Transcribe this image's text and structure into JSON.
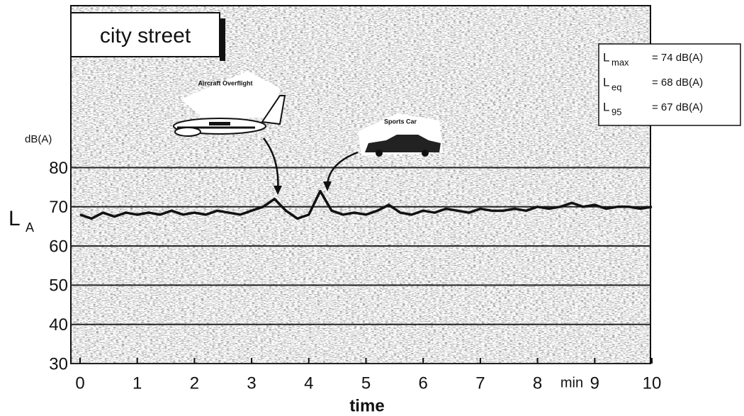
{
  "chart_data": {
    "type": "line",
    "title": "city street",
    "x": [
      0,
      0.2,
      0.4,
      0.6,
      0.8,
      1.0,
      1.2,
      1.4,
      1.6,
      1.8,
      2.0,
      2.2,
      2.4,
      2.6,
      2.8,
      3.0,
      3.2,
      3.4,
      3.6,
      3.8,
      4.0,
      4.2,
      4.4,
      4.6,
      4.8,
      5.0,
      5.2,
      5.4,
      5.6,
      5.8,
      6.0,
      6.2,
      6.4,
      6.6,
      6.8,
      7.0,
      7.2,
      7.4,
      7.6,
      7.8,
      8.0,
      8.2,
      8.4,
      8.6,
      8.8,
      9.0,
      9.2,
      9.4,
      9.6,
      9.8,
      10.0
    ],
    "values": [
      68,
      67,
      68.5,
      67.5,
      68.5,
      68,
      68.5,
      68,
      69,
      68,
      68.5,
      68,
      69,
      68.5,
      68,
      69,
      70,
      72,
      69,
      67,
      68,
      74,
      69,
      68,
      68.5,
      68,
      69,
      70.5,
      68.5,
      68,
      69,
      68.5,
      69.5,
      69,
      68.5,
      69.5,
      69,
      69,
      69.5,
      69,
      70,
      69.5,
      70,
      71,
      70,
      70.5,
      69.5,
      70,
      70,
      69.5,
      70
    ],
    "color": "#111111",
    "xlim": [
      0,
      10
    ],
    "xticks": [
      0,
      1,
      2,
      3,
      4,
      5,
      6,
      7,
      8,
      9,
      10
    ],
    "ylim": [
      30,
      121
    ],
    "yticks": [
      30,
      40,
      50,
      60,
      70,
      80
    ],
    "grid": true,
    "xlabel": "time",
    "x_unit": "min",
    "ylabel": "L",
    "ylabel_sub": "A",
    "y_unit": "dB(A)",
    "annotations": [
      "Aircraft Overflight",
      "Sports Car"
    ],
    "legend_box": [
      {
        "symbol": "L",
        "sub": "max",
        "text": "=  74  dB(A)"
      },
      {
        "symbol": "L",
        "sub": "eq",
        "text": "=  68  dB(A)"
      },
      {
        "symbol": "L",
        "sub": "95",
        "text": "=  67  dB(A)"
      }
    ]
  }
}
